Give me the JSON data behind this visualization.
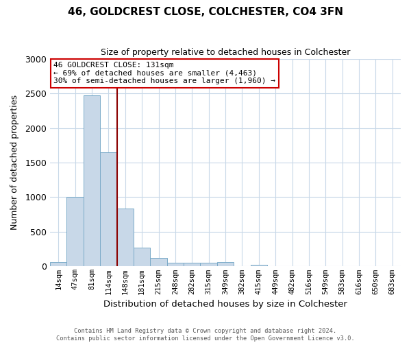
{
  "title": "46, GOLDCREST CLOSE, COLCHESTER, CO4 3FN",
  "subtitle": "Size of property relative to detached houses in Colchester",
  "xlabel": "Distribution of detached houses by size in Colchester",
  "ylabel": "Number of detached properties",
  "bin_labels": [
    "14sqm",
    "47sqm",
    "81sqm",
    "114sqm",
    "148sqm",
    "181sqm",
    "215sqm",
    "248sqm",
    "282sqm",
    "315sqm",
    "349sqm",
    "382sqm",
    "415sqm",
    "449sqm",
    "482sqm",
    "516sqm",
    "549sqm",
    "583sqm",
    "616sqm",
    "650sqm",
    "683sqm"
  ],
  "bin_values": [
    60,
    1000,
    2470,
    1650,
    840,
    270,
    120,
    50,
    50,
    50,
    60,
    0,
    25,
    0,
    0,
    0,
    0,
    0,
    0,
    0,
    0
  ],
  "bar_color": "#c8d8e8",
  "bar_edge_color": "#7aaac8",
  "vline_color": "#8b0000",
  "annotation_lines": [
    "46 GOLDCREST CLOSE: 131sqm",
    "← 69% of detached houses are smaller (4,463)",
    "30% of semi-detached houses are larger (1,960) →"
  ],
  "annotation_box_edge_color": "#cc0000",
  "ylim": [
    0,
    3000
  ],
  "yticks": [
    0,
    500,
    1000,
    1500,
    2000,
    2500,
    3000
  ],
  "footer_line1": "Contains HM Land Registry data © Crown copyright and database right 2024.",
  "footer_line2": "Contains public sector information licensed under the Open Government Licence v3.0.",
  "bg_color": "#ffffff",
  "grid_color": "#c8d8e8"
}
